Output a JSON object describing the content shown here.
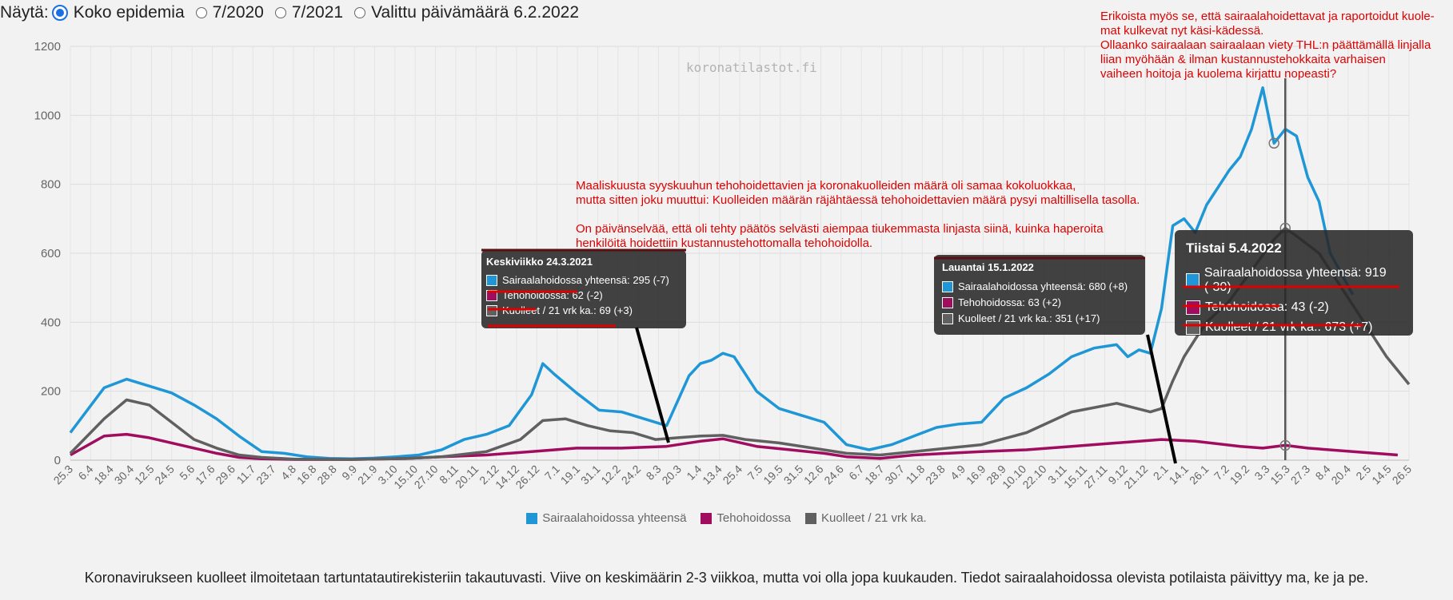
{
  "controls": {
    "label": "Näytä:",
    "options": [
      {
        "label": "Koko epidemia",
        "selected": true
      },
      {
        "label": "7/2020",
        "selected": false
      },
      {
        "label": "7/2021",
        "selected": false
      },
      {
        "label": "Valittu päivämäärä 6.2.2022",
        "selected": false
      }
    ]
  },
  "watermark": "koronatilastot.fi",
  "colors": {
    "hospital": "#1f97d6",
    "icu": "#a00d5f",
    "deaths": "#606060",
    "annotation": "#e00000"
  },
  "chart_data": {
    "type": "line",
    "ylim": [
      0,
      1200
    ],
    "yticks": [
      0,
      200,
      400,
      600,
      800,
      1000,
      1200
    ],
    "xticks": [
      "25.3",
      "6.4",
      "18.4",
      "30.4",
      "12.5",
      "24.5",
      "5.6",
      "17.6",
      "29.6",
      "11.7",
      "23.7",
      "4.8",
      "16.8",
      "28.8",
      "9.9",
      "21.9",
      "3.10",
      "15.10",
      "27.10",
      "8.11",
      "20.11",
      "2.12",
      "14.12",
      "26.12",
      "7.1",
      "19.1",
      "31.1",
      "12.2",
      "24.2",
      "8.3",
      "20.3",
      "1.4",
      "13.4",
      "25.4",
      "7.5",
      "19.5",
      "31.5",
      "12.6",
      "24.6",
      "6.7",
      "18.7",
      "30.7",
      "11.8",
      "23.8",
      "4.9",
      "16.9",
      "28.9",
      "10.10",
      "22.10",
      "3.11",
      "15.11",
      "27.11",
      "9.12",
      "21.12",
      "2.1",
      "14.1",
      "26.1",
      "7.2",
      "19.2",
      "3.3",
      "15.3",
      "27.3",
      "8.4",
      "20.4",
      "2.5",
      "14.5",
      "26.5"
    ],
    "series": [
      {
        "name": "Sairaalahoidossa yhteensä",
        "color": "#1f97d6",
        "points": [
          [
            0,
            80
          ],
          [
            3,
            210
          ],
          [
            5,
            235
          ],
          [
            7,
            215
          ],
          [
            9,
            195
          ],
          [
            11,
            160
          ],
          [
            13,
            120
          ],
          [
            15,
            70
          ],
          [
            17,
            25
          ],
          [
            19,
            20
          ],
          [
            21,
            10
          ],
          [
            23,
            5
          ],
          [
            25,
            4
          ],
          [
            27,
            6
          ],
          [
            29,
            10
          ],
          [
            31,
            15
          ],
          [
            33,
            30
          ],
          [
            35,
            60
          ],
          [
            37,
            75
          ],
          [
            39,
            100
          ],
          [
            41,
            190
          ],
          [
            42,
            280
          ],
          [
            43,
            250
          ],
          [
            45,
            195
          ],
          [
            47,
            145
          ],
          [
            49,
            140
          ],
          [
            51,
            120
          ],
          [
            53,
            100
          ],
          [
            55,
            245
          ],
          [
            56,
            280
          ],
          [
            57,
            290
          ],
          [
            58,
            310
          ],
          [
            59,
            300
          ],
          [
            61,
            200
          ],
          [
            63,
            150
          ],
          [
            65,
            130
          ],
          [
            67,
            110
          ],
          [
            69,
            45
          ],
          [
            71,
            30
          ],
          [
            73,
            45
          ],
          [
            75,
            70
          ],
          [
            77,
            95
          ],
          [
            79,
            105
          ],
          [
            81,
            110
          ],
          [
            83,
            180
          ],
          [
            85,
            210
          ],
          [
            87,
            250
          ],
          [
            89,
            300
          ],
          [
            91,
            325
          ],
          [
            93,
            335
          ],
          [
            94,
            300
          ],
          [
            95,
            320
          ],
          [
            96,
            310
          ],
          [
            97,
            440
          ],
          [
            98,
            680
          ],
          [
            99,
            700
          ],
          [
            100,
            660
          ],
          [
            101,
            740
          ],
          [
            102,
            790
          ],
          [
            103,
            840
          ],
          [
            104,
            880
          ],
          [
            105,
            960
          ],
          [
            106,
            1080
          ],
          [
            107,
            919
          ],
          [
            108,
            960
          ],
          [
            109,
            940
          ],
          [
            110,
            820
          ],
          [
            111,
            750
          ],
          [
            112,
            600
          ],
          [
            113,
            540
          ],
          [
            114,
            480
          ]
        ]
      },
      {
        "name": "Tehohoidossa",
        "color": "#a00d5f",
        "points": [
          [
            0,
            15
          ],
          [
            3,
            70
          ],
          [
            5,
            75
          ],
          [
            7,
            65
          ],
          [
            9,
            50
          ],
          [
            11,
            35
          ],
          [
            13,
            20
          ],
          [
            15,
            8
          ],
          [
            17,
            4
          ],
          [
            20,
            2
          ],
          [
            25,
            2
          ],
          [
            30,
            5
          ],
          [
            33,
            10
          ],
          [
            37,
            15
          ],
          [
            41,
            25
          ],
          [
            45,
            35
          ],
          [
            49,
            35
          ],
          [
            53,
            40
          ],
          [
            56,
            55
          ],
          [
            58,
            62
          ],
          [
            61,
            40
          ],
          [
            64,
            30
          ],
          [
            67,
            20
          ],
          [
            69,
            10
          ],
          [
            72,
            5
          ],
          [
            75,
            15
          ],
          [
            78,
            20
          ],
          [
            81,
            25
          ],
          [
            85,
            30
          ],
          [
            89,
            40
          ],
          [
            93,
            50
          ],
          [
            97,
            60
          ],
          [
            100,
            55
          ],
          [
            104,
            40
          ],
          [
            106,
            35
          ],
          [
            108,
            43
          ],
          [
            110,
            35
          ],
          [
            114,
            25
          ],
          [
            118,
            15
          ]
        ]
      },
      {
        "name": "Kuolleet / 21 vrk ka.",
        "color": "#606060",
        "points": [
          [
            0,
            20
          ],
          [
            3,
            120
          ],
          [
            5,
            175
          ],
          [
            7,
            160
          ],
          [
            9,
            110
          ],
          [
            11,
            60
          ],
          [
            13,
            35
          ],
          [
            15,
            15
          ],
          [
            17,
            8
          ],
          [
            20,
            3
          ],
          [
            25,
            2
          ],
          [
            30,
            5
          ],
          [
            33,
            10
          ],
          [
            37,
            25
          ],
          [
            40,
            60
          ],
          [
            42,
            115
          ],
          [
            44,
            120
          ],
          [
            46,
            100
          ],
          [
            48,
            85
          ],
          [
            50,
            80
          ],
          [
            52,
            60
          ],
          [
            54,
            65
          ],
          [
            56,
            70
          ],
          [
            58,
            72
          ],
          [
            60,
            60
          ],
          [
            63,
            50
          ],
          [
            66,
            35
          ],
          [
            69,
            20
          ],
          [
            72,
            15
          ],
          [
            75,
            25
          ],
          [
            78,
            35
          ],
          [
            81,
            45
          ],
          [
            85,
            80
          ],
          [
            89,
            140
          ],
          [
            93,
            165
          ],
          [
            96,
            140
          ],
          [
            97,
            150
          ],
          [
            98,
            230
          ],
          [
            99,
            300
          ],
          [
            100,
            351
          ],
          [
            101,
            400
          ],
          [
            103,
            460
          ],
          [
            105,
            550
          ],
          [
            107,
            640
          ],
          [
            108,
            673
          ],
          [
            109,
            650
          ],
          [
            111,
            600
          ],
          [
            113,
            500
          ],
          [
            115,
            400
          ],
          [
            117,
            300
          ],
          [
            119,
            220
          ]
        ]
      }
    ]
  },
  "tooltips": [
    {
      "title": "Keskiviikko 24.3.2021",
      "rows": [
        "Sairaalahoidossa yhteensä: 295 (-7)",
        "Tehohoidossa: 62 (-2)",
        "Kuolleet / 21 vrk ka.: 69 (+3)"
      ]
    },
    {
      "title": "Lauantai 15.1.2022",
      "rows": [
        "Sairaalahoidossa yhteensä: 680 (+8)",
        "Tehohoidossa: 63 (+2)",
        "Kuolleet / 21 vrk ka.: 351 (+17)"
      ]
    },
    {
      "title": "Tiistai 5.4.2022",
      "rows": [
        "Sairaalahoidossa yhteensä: 919 (-30)",
        "Tehohoidossa: 43 (-2)",
        "Kuolleet / 21 vrk ka.: 673 (+7)"
      ]
    }
  ],
  "annotations": {
    "top_right": "Erikoista myös se, että sairaalahoidettavat ja raportoidut kuole-\nmat kulkevat nyt käsi-kädessä.\nOllaanko sairaalaan sairaalaan viety THL:n päättämällä linjalla\nliian myöhään & ilman kustannustehokkaita varhaisen\nvaiheen hoitoja ja kuolema kirjattu nopeasti?",
    "middle": "Maaliskuusta syyskuuhun tehohoidettavien ja koronakuolleiden määrä oli samaa kokoluokkaa,\nmutta sitten joku muuttui: Kuolleiden määrän räjähtäessä tehohoidettavien määrä pysyi maltillisella tasolla.\n\nOn päivänselvää, että oli tehty päätös selvästi aiempaa tiukemmasta linjasta siinä, kuinka haperoita\nhenkilöitä hoidettiin kustannustehottomalla tehohoidolla."
  },
  "legend": [
    {
      "label": "Sairaalahoidossa yhteensä",
      "color": "#1f97d6"
    },
    {
      "label": "Tehohoidossa",
      "color": "#a00d5f"
    },
    {
      "label": "Kuolleet / 21 vrk ka.",
      "color": "#606060"
    }
  ],
  "footnote": "Koronavirukseen kuolleet ilmoitetaan tartuntatautirekisteriin takautuvasti. Viive on keskimäärin 2-3 viikkoa, mutta voi olla jopa kuukauden. Tiedot sairaalahoidossa olevista potilaista päivittyy ma, ke ja pe."
}
